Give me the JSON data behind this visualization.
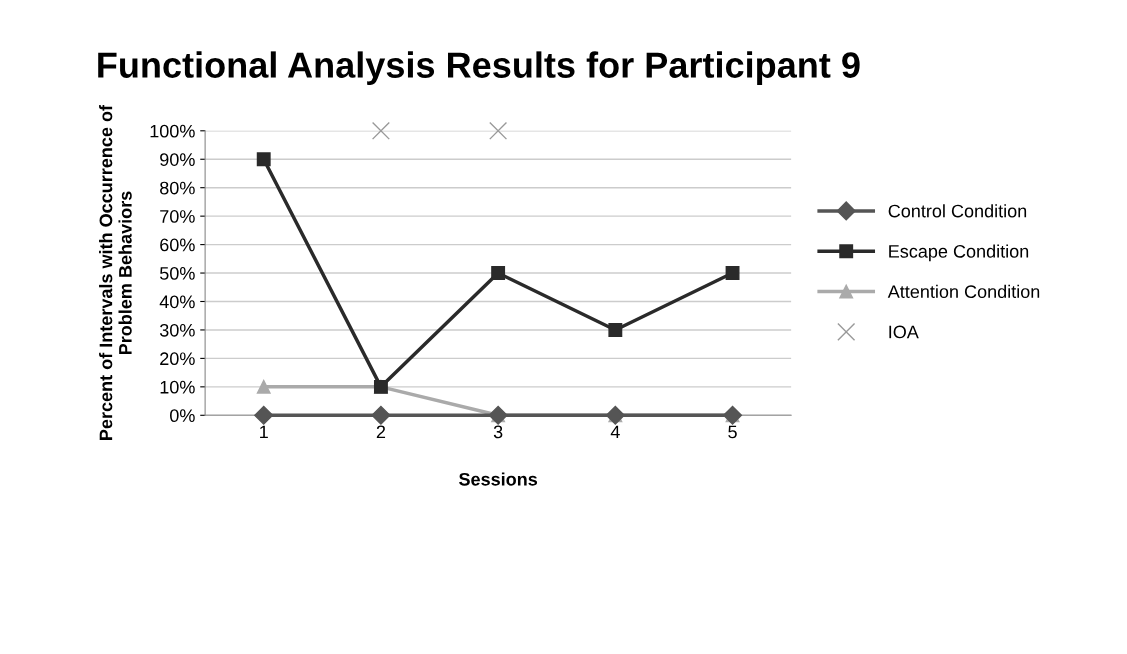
{
  "chart_data": {
    "type": "line",
    "title": "Functional Analysis Results for Participant 9",
    "xlabel": "Sessions",
    "ylabel": "Percent of Intervals with Occurrence of\nProblem Behaviors",
    "categories": [
      "1",
      "2",
      "3",
      "4",
      "5"
    ],
    "series": [
      {
        "name": "Control Condition",
        "color": "#555555",
        "marker": "diamond",
        "values": [
          0,
          0,
          0,
          0,
          0
        ]
      },
      {
        "name": "Escape Condition",
        "color": "#2a2a2a",
        "marker": "square",
        "values": [
          90,
          10,
          50,
          30,
          50
        ]
      },
      {
        "name": "Attention Condition",
        "color": "#aaaaaa",
        "marker": "triangle",
        "values": [
          10,
          10,
          0,
          0,
          0
        ]
      },
      {
        "name": "IOA",
        "type": "scatter",
        "color": "#999999",
        "marker": "cross",
        "values": [
          null,
          100,
          100,
          null,
          null
        ]
      }
    ],
    "ylim": [
      0,
      100
    ],
    "yticks": [
      {
        "value": 0,
        "label": "0%"
      },
      {
        "value": 10,
        "label": "10%"
      },
      {
        "value": 20,
        "label": "20%"
      },
      {
        "value": 30,
        "label": "30%"
      },
      {
        "value": 40,
        "label": "40%"
      },
      {
        "value": 50,
        "label": "50%"
      },
      {
        "value": 60,
        "label": "60%"
      },
      {
        "value": 70,
        "label": "70%"
      },
      {
        "value": 80,
        "label": "80%"
      },
      {
        "value": 90,
        "label": "90%"
      },
      {
        "value": 100,
        "label": "100%"
      }
    ],
    "grid": "y",
    "legend": "right"
  }
}
